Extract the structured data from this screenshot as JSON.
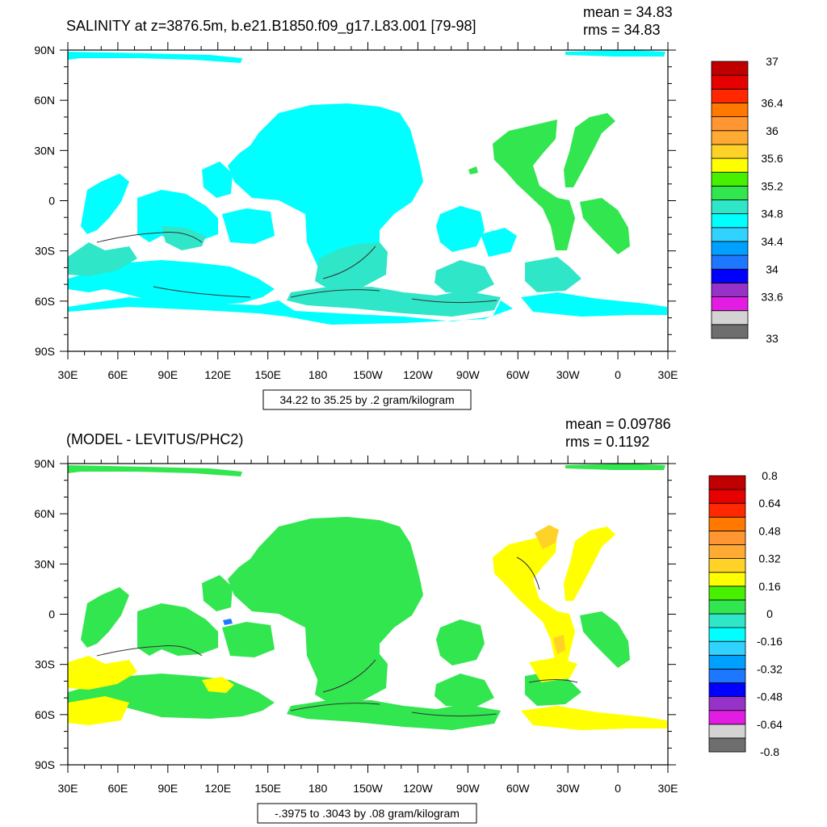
{
  "panels": [
    {
      "title": "SALINITY at z=3876.5m, b.e21.B1850.f09_g17.L83.001 [79-98]",
      "mean_label": "mean = 34.83",
      "rms_label": "rms = 34.83",
      "contour_info": "34.22 to 35.25 by .2 gram/kilogram",
      "ylabels": [
        "90N",
        "60N",
        "30N",
        "0",
        "30S",
        "60S",
        "90S"
      ],
      "xlabels": [
        "30E",
        "60E",
        "90E",
        "120E",
        "150E",
        "180",
        "150W",
        "120W",
        "90W",
        "60W",
        "30W",
        "0",
        "30E"
      ],
      "colorbar": {
        "colors": [
          "#6e6e6e",
          "#d3d3d3",
          "#e31ce3",
          "#9632c8",
          "#0000ff",
          "#1e78ff",
          "#00a0ff",
          "#32d2ff",
          "#00ffff",
          "#30e6c8",
          "#32e650",
          "#46f000",
          "#ffff00",
          "#ffd228",
          "#ffaa32",
          "#ff9632",
          "#ff7800",
          "#ff2800",
          "#e60000",
          "#c00000"
        ],
        "labels": [
          {
            "text": "37",
            "slot": 0
          },
          {
            "text": "36.4",
            "slot": 3
          },
          {
            "text": "36",
            "slot": 5
          },
          {
            "text": "35.6",
            "slot": 7
          },
          {
            "text": "35.2",
            "slot": 9
          },
          {
            "text": "34.8",
            "slot": 11
          },
          {
            "text": "34.4",
            "slot": 13
          },
          {
            "text": "34",
            "slot": 15
          },
          {
            "text": "33.6",
            "slot": 17
          },
          {
            "text": "33",
            "slot": 20
          }
        ]
      }
    },
    {
      "title": "(MODEL - LEVITUS/PHC2)",
      "mean_label": "mean = 0.09786",
      "rms_label": "rms = 0.1192",
      "contour_info": "-.3975 to .3043 by .08 gram/kilogram",
      "ylabels": [
        "90N",
        "60N",
        "30N",
        "0",
        "30S",
        "60S",
        "90S"
      ],
      "xlabels": [
        "30E",
        "60E",
        "90E",
        "120E",
        "150E",
        "180",
        "150W",
        "120W",
        "90W",
        "60W",
        "30W",
        "0",
        "30E"
      ],
      "colorbar": {
        "colors": [
          "#6e6e6e",
          "#d3d3d3",
          "#e31ce3",
          "#9632c8",
          "#0000ff",
          "#1e78ff",
          "#00a0ff",
          "#32d2ff",
          "#00ffff",
          "#30e6c8",
          "#32e650",
          "#46f000",
          "#ffff00",
          "#ffd228",
          "#ffaa32",
          "#ff9632",
          "#ff7800",
          "#ff2800",
          "#e60000",
          "#c00000"
        ],
        "labels": [
          {
            "text": "0.8",
            "slot": 0
          },
          {
            "text": "0.64",
            "slot": 1
          },
          {
            "text": "0.48",
            "slot": 2
          },
          {
            "text": "0.32",
            "slot": 3
          },
          {
            "text": "0.16",
            "slot": 4
          },
          {
            "text": "0",
            "slot": 5
          },
          {
            "text": "-0.16",
            "slot": 6
          },
          {
            "text": "-0.32",
            "slot": 7
          },
          {
            "text": "-0.48",
            "slot": 8
          },
          {
            "text": "-0.64",
            "slot": 9
          },
          {
            "text": "-0.8",
            "slot": 10
          }
        ]
      }
    }
  ],
  "chart_data": [
    {
      "type": "heatmap",
      "title": "SALINITY at z=3876.5m, b.e21.B1850.f09_g17.L83.001 [79-98]",
      "mean": 34.83,
      "rms": 34.83,
      "contour_range": "34.22 to 35.25 by .2 gram/kilogram",
      "x_ticks": [
        "30E",
        "60E",
        "90E",
        "120E",
        "150E",
        "180",
        "150W",
        "120W",
        "90W",
        "60W",
        "30W",
        "0",
        "30E"
      ],
      "y_ticks": [
        "90N",
        "60N",
        "30N",
        "0",
        "30S",
        "60S",
        "90S"
      ],
      "xlim": [
        30,
        390
      ],
      "ylim": [
        -90,
        90
      ],
      "colorbar_levels": [
        33,
        33.6,
        34,
        34.4,
        34.8,
        35.2,
        35.6,
        36,
        36.4,
        37
      ],
      "dominant_values": "34.8-35.0 (cyan) in Pacific/Indian/Southern oceans; 35.0-35.2 (green) in North Atlantic and western South Atlantic"
    },
    {
      "type": "heatmap",
      "title": "(MODEL - LEVITUS/PHC2)",
      "mean": 0.09786,
      "rms": 0.1192,
      "contour_range": "-.3975 to .3043 by .08 gram/kilogram",
      "x_ticks": [
        "30E",
        "60E",
        "90E",
        "120E",
        "150E",
        "180",
        "150W",
        "120W",
        "90W",
        "60W",
        "30W",
        "0",
        "30E"
      ],
      "y_ticks": [
        "90N",
        "60N",
        "30N",
        "0",
        "30S",
        "60S",
        "90S"
      ],
      "xlim": [
        30,
        390
      ],
      "ylim": [
        -90,
        90
      ],
      "colorbar_levels": [
        -0.8,
        -0.64,
        -0.48,
        -0.32,
        -0.16,
        0,
        0.16,
        0.32,
        0.48,
        0.64,
        0.8
      ],
      "dominant_values": "0 to 0.16 (green) in Pacific/Indian oceans; 0.16 to 0.32 (yellow) in Atlantic and Southern Ocean patches"
    }
  ]
}
